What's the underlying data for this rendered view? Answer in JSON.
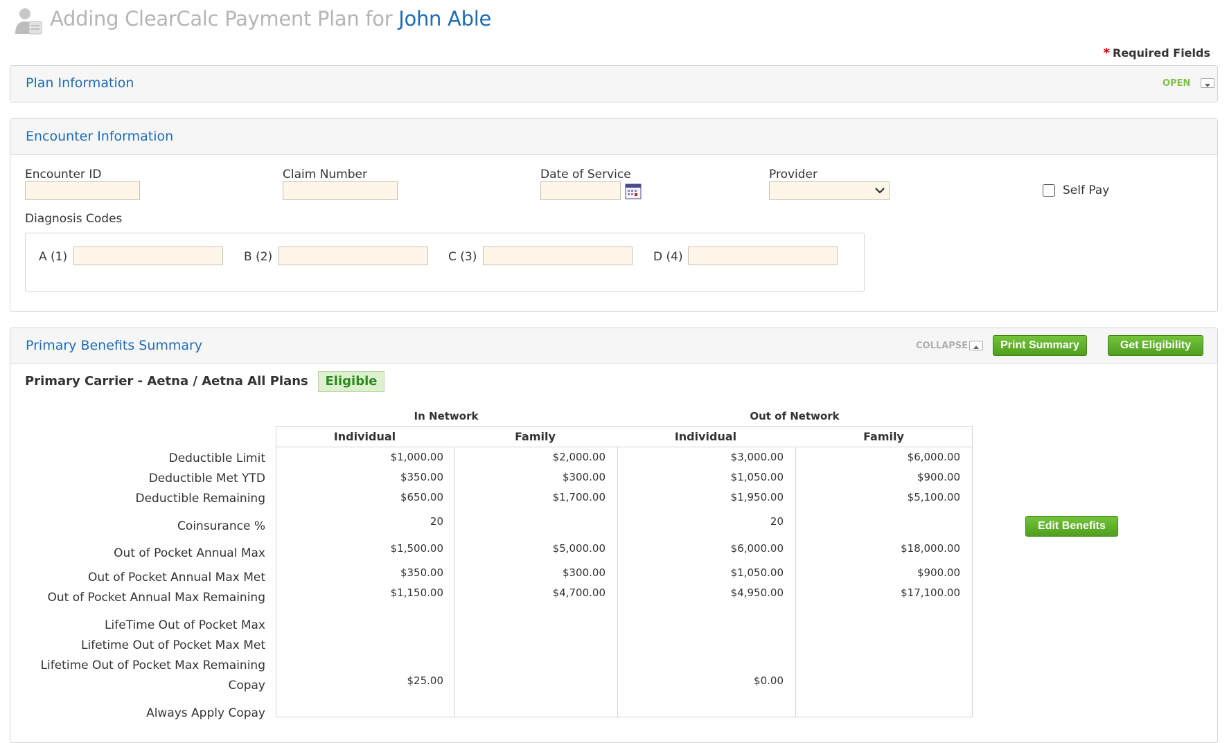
{
  "header": {
    "title_prefix": "Adding ClearCalc Payment Plan for",
    "patient_name": "John Able",
    "required_note": "Required Fields",
    "required_star": "*"
  },
  "plan_panel": {
    "title": "Plan Information",
    "toggle_label": "OPEN"
  },
  "encounter_panel": {
    "title": "Encounter Information",
    "fields": {
      "encounter_id": {
        "label": "Encounter ID",
        "value": ""
      },
      "claim_number": {
        "label": "Claim Number",
        "value": ""
      },
      "date_of_service": {
        "label": "Date of Service",
        "value": ""
      },
      "provider": {
        "label": "Provider",
        "value": ""
      },
      "self_pay": {
        "label": "Self Pay",
        "checked": false
      }
    },
    "diagnosis": {
      "label": "Diagnosis Codes",
      "codes": [
        {
          "label": "A (1)",
          "value": ""
        },
        {
          "label": "B (2)",
          "value": ""
        },
        {
          "label": "C (3)",
          "value": ""
        },
        {
          "label": "D (4)",
          "value": ""
        }
      ]
    }
  },
  "benefits_panel": {
    "title": "Primary Benefits Summary",
    "collapse_label": "COLLAPSE",
    "print_button": "Print Summary",
    "eligibility_button": "Get Eligibility",
    "edit_button": "Edit Benefits",
    "carrier": "Primary Carrier - Aetna / Aetna All Plans",
    "status": "Eligible",
    "groups": [
      "In Network",
      "Out of Network"
    ],
    "columns": [
      "Individual",
      "Family",
      "Individual",
      "Family"
    ],
    "rows": [
      {
        "label": "Deductible Limit",
        "values": [
          "$1,000.00",
          "$2,000.00",
          "$3,000.00",
          "$6,000.00"
        ]
      },
      {
        "label": "Deductible Met YTD",
        "values": [
          "$350.00",
          "$300.00",
          "$1,050.00",
          "$900.00"
        ]
      },
      {
        "label": "Deductible Remaining",
        "values": [
          "$650.00",
          "$1,700.00",
          "$1,950.00",
          "$5,100.00"
        ]
      },
      {
        "label": "Coinsurance %",
        "values": [
          "20",
          "",
          "20",
          ""
        ]
      },
      {
        "label": "Out of Pocket Annual Max",
        "values": [
          "$1,500.00",
          "$5,000.00",
          "$6,000.00",
          "$18,000.00"
        ]
      },
      {
        "label": "Out of Pocket Annual Max Met",
        "values": [
          "$350.00",
          "$300.00",
          "$1,050.00",
          "$900.00"
        ]
      },
      {
        "label": "Out of Pocket Annual Max Remaining",
        "values": [
          "$1,150.00",
          "$4,700.00",
          "$4,950.00",
          "$17,100.00"
        ]
      },
      {
        "label": "LifeTime Out of Pocket Max",
        "values": [
          "",
          "",
          "",
          ""
        ]
      },
      {
        "label": "Lifetime Out of Pocket Max Met",
        "values": [
          "",
          "",
          "",
          ""
        ]
      },
      {
        "label": "Lifetime Out of Pocket Max Remaining",
        "values": [
          "",
          "",
          "",
          ""
        ]
      },
      {
        "label": "Copay",
        "values": [
          "$25.00",
          "",
          "$0.00",
          ""
        ]
      },
      {
        "label": "Always Apply Copay",
        "values": [
          "",
          "",
          "",
          ""
        ]
      }
    ]
  },
  "colors": {
    "link_blue": "#1f6bb2",
    "green_button": "#5aab27",
    "open_green": "#7dc142",
    "input_bg": "#fdf6e9"
  }
}
